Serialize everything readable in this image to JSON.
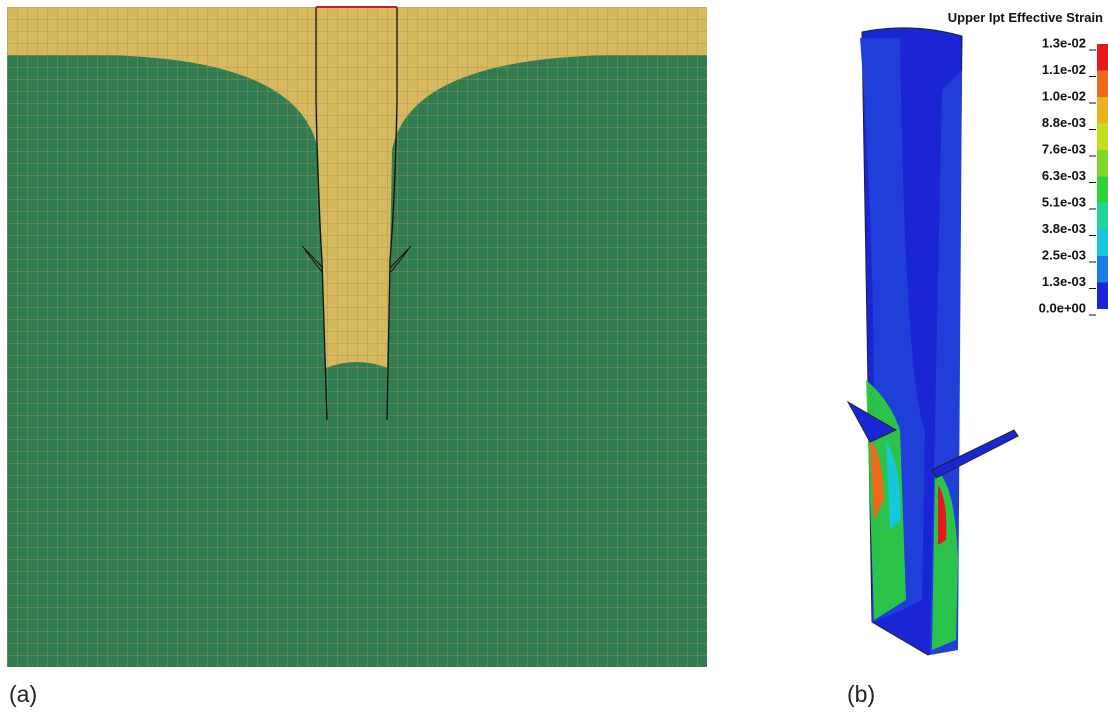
{
  "panels": {
    "a": {
      "label": "(a)"
    },
    "b": {
      "label": "(b)"
    }
  },
  "legend": {
    "title": "Upper Ipt Effective Strain",
    "labels": [
      "1.3e-02",
      "1.1e-02",
      "1.0e-02",
      "8.8e-03",
      "7.6e-03",
      "6.3e-03",
      "5.1e-03",
      "3.8e-03",
      "2.5e-03",
      "1.3e-03",
      "0.0e+00"
    ],
    "colors": [
      "#e41a1c",
      "#ee6a1b",
      "#e9b21d",
      "#c4df22",
      "#7ed82a",
      "#2ed23c",
      "#1fd59b",
      "#17c7dc",
      "#1a7fe0",
      "#1a26d6"
    ]
  }
}
